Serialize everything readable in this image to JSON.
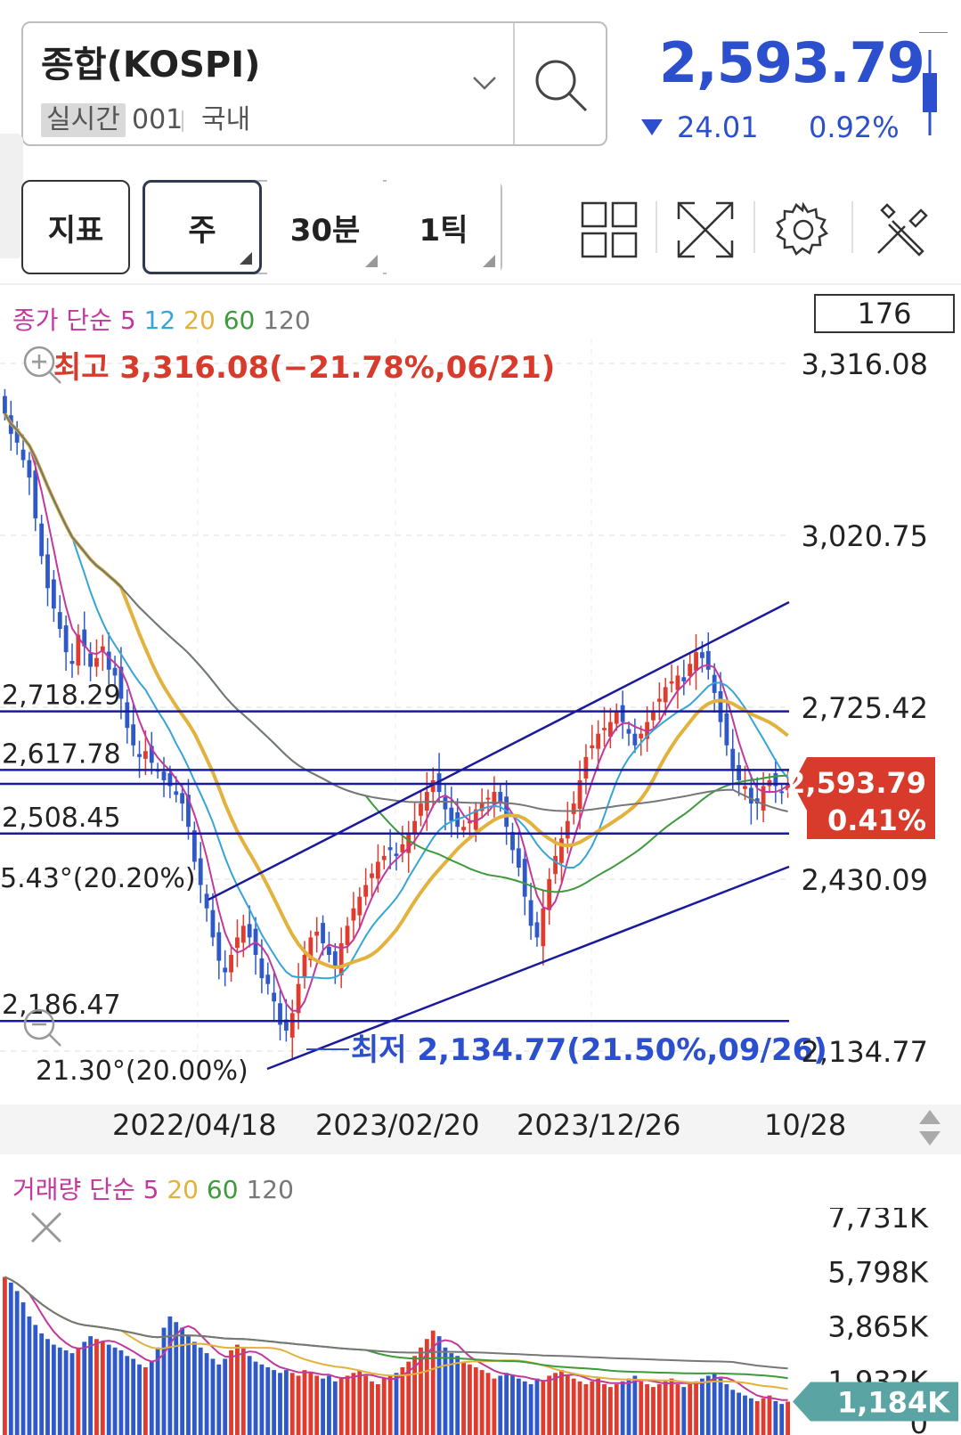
{
  "header": {
    "symbol_name": "종합(KOSPI)",
    "realtime_tag": "실시간",
    "code": "001",
    "market": "국내",
    "price": "2,593.79",
    "change": "24.01",
    "change_pct": "0.92%",
    "change_direction": "down",
    "price_color": "#2c4fce"
  },
  "tabs": {
    "indicator": "지표",
    "weekly": "주",
    "min30": "30분",
    "tick1": "1틱",
    "icons": [
      "grid-icon",
      "fullscreen-icon",
      "gear-icon",
      "tools-icon"
    ]
  },
  "price_legend": {
    "label": "종가 단순",
    "periods": [
      {
        "text": "5",
        "color": "#c2399d"
      },
      {
        "text": "12",
        "color": "#36a4d6"
      },
      {
        "text": "20",
        "color": "#e3b23c"
      },
      {
        "text": "60",
        "color": "#3d9a3d"
      },
      {
        "text": "120",
        "color": "#777777"
      }
    ],
    "count_box": "176"
  },
  "volume_legend": {
    "label": "거래량 단순",
    "periods": [
      {
        "text": "5",
        "color": "#c2399d"
      },
      {
        "text": "20",
        "color": "#e3b23c"
      },
      {
        "text": "60",
        "color": "#3d9a3d"
      },
      {
        "text": "120",
        "color": "#777777"
      }
    ]
  },
  "chart_data": [
    {
      "type": "candlestick",
      "period": "weekly",
      "y_ticks": [
        "3,316.08",
        "3,020.75",
        "2,725.42",
        "2,430.09",
        "2,134.77"
      ],
      "ylim": [
        2134.77,
        3316.08
      ],
      "x_labels": [
        "2022/04/18",
        "2023/02/20",
        "2023/12/26",
        "10/28"
      ],
      "current_tag": {
        "price": "2,593.79",
        "pct": "0.41%",
        "value": 2593.79,
        "color": "#d83a2b"
      },
      "high_annotation": {
        "text": "최고 3,316.08(−21.78%,06/21)",
        "value": 3316.08,
        "color": "#d83a2b"
      },
      "low_annotation": {
        "text": "최저 2,134.77(21.50%,09/26)",
        "value": 2134.77,
        "color": "#2c4fce"
      },
      "horizontal_lines": [
        {
          "label": "2,718.29",
          "value": 2718.29
        },
        {
          "label": "2,617.78",
          "value": 2617.78
        },
        {
          "label": "2,508.45",
          "value": 2508.45
        },
        {
          "label": "2,186.47",
          "value": 2186.47
        }
      ],
      "trend_line_labels": [
        "5.43°(20.20%)",
        "21.30°(20.00%)"
      ],
      "up_color": "#e03b2e",
      "down_color": "#2f59c9",
      "line_color": "#1a1a9c",
      "closes": [
        3230,
        3195,
        3180,
        3150,
        3120,
        3050,
        2985,
        2930,
        2895,
        2860,
        2820,
        2800,
        2850,
        2830,
        2795,
        2810,
        2830,
        2790,
        2780,
        2740,
        2690,
        2660,
        2640,
        2650,
        2630,
        2615,
        2600,
        2590,
        2575,
        2560,
        2520,
        2460,
        2420,
        2380,
        2330,
        2290,
        2270,
        2300,
        2330,
        2350,
        2330,
        2300,
        2260,
        2250,
        2220,
        2180,
        2170,
        2200,
        2250,
        2300,
        2330,
        2340,
        2320,
        2300,
        2280,
        2320,
        2350,
        2380,
        2400,
        2420,
        2440,
        2460,
        2470,
        2480,
        2470,
        2490,
        2510,
        2530,
        2560,
        2580,
        2600,
        2580,
        2550,
        2530,
        2520,
        2520,
        2530,
        2550,
        2560,
        2570,
        2580,
        2560,
        2520,
        2480,
        2450,
        2400,
        2350,
        2330,
        2380,
        2430,
        2470,
        2500,
        2530,
        2560,
        2600,
        2640,
        2660,
        2680,
        2690,
        2700,
        2720,
        2700,
        2680,
        2660,
        2680,
        2700,
        2720,
        2740,
        2760,
        2770,
        2780,
        2770,
        2800,
        2820,
        2810,
        2790,
        2750,
        2700,
        2660,
        2620,
        2600,
        2590,
        2560,
        2560,
        2590,
        2600,
        2590,
        2580,
        2594
      ],
      "ma_periods": [
        5,
        12,
        20,
        60,
        120
      ]
    },
    {
      "type": "bar",
      "title": "거래량",
      "y_ticks": [
        "7,731K",
        "5,798K",
        "3,865K",
        "1,932K",
        "0"
      ],
      "ylim": [
        0,
        7731
      ],
      "current_tag": {
        "value_label": "1,184K",
        "value": 1184,
        "color": "#5ba4a4"
      },
      "values": [
        5600,
        5400,
        5100,
        4700,
        4200,
        3900,
        3600,
        3400,
        3200,
        3100,
        3000,
        2900,
        3100,
        3300,
        3500,
        3400,
        3300,
        3200,
        3100,
        3000,
        2800,
        2700,
        2500,
        2400,
        2600,
        3100,
        3800,
        4200,
        4000,
        3800,
        3500,
        3300,
        3100,
        2900,
        2700,
        2500,
        2700,
        3000,
        3200,
        3100,
        2800,
        2600,
        2500,
        2400,
        2300,
        2200,
        2300,
        2200,
        2100,
        2300,
        2200,
        2100,
        2000,
        2100,
        1900,
        2000,
        2100,
        2200,
        2300,
        2100,
        1900,
        1800,
        2000,
        2100,
        2200,
        2400,
        2600,
        2800,
        3100,
        3400,
        3700,
        3500,
        3100,
        2900,
        2800,
        2600,
        2500,
        2400,
        2300,
        2200,
        2000,
        2100,
        2200,
        2100,
        2000,
        1900,
        1800,
        2000,
        1900,
        2100,
        2200,
        2300,
        2100,
        2000,
        1900,
        1800,
        1900,
        2000,
        1800,
        1700,
        1800,
        1900,
        2000,
        2100,
        1900,
        1800,
        1700,
        1800,
        1900,
        2000,
        1800,
        1700,
        1800,
        1900,
        2000,
        2100,
        2200,
        2000,
        1800,
        1600,
        1500,
        1400,
        1300,
        1200,
        1300,
        1400,
        1200,
        1100,
        1184
      ]
    }
  ]
}
